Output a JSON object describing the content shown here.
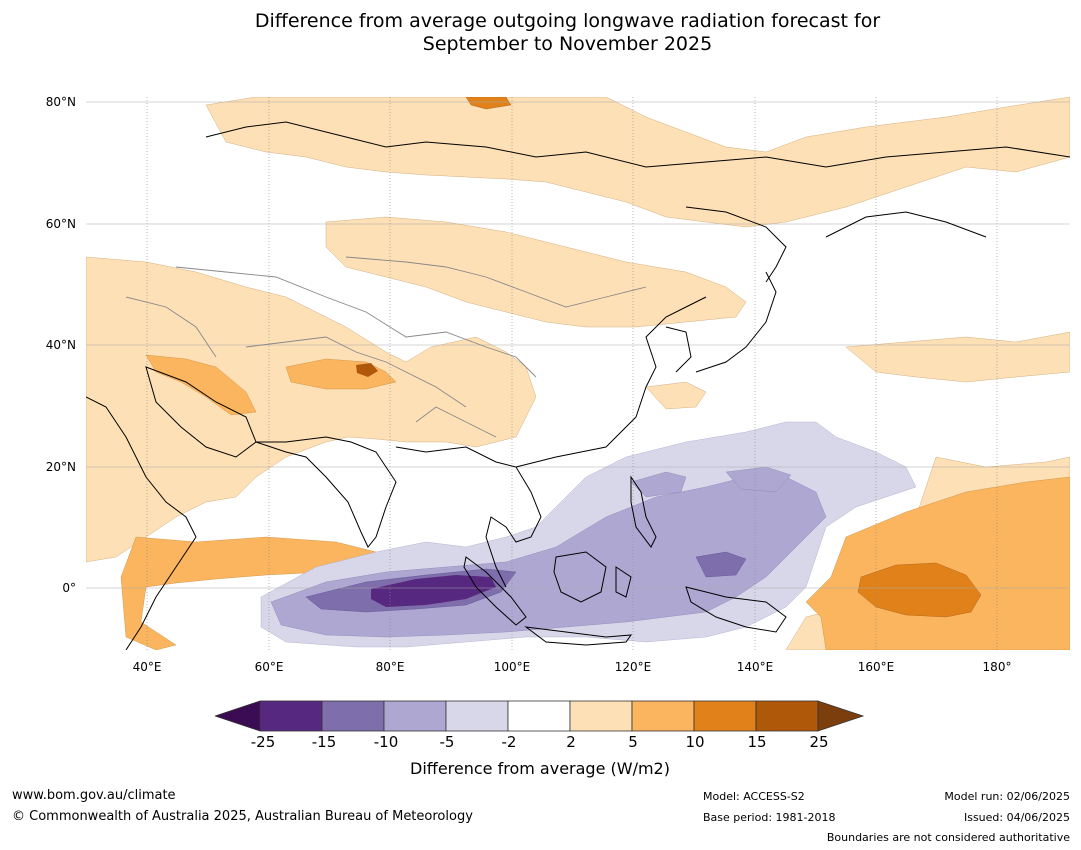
{
  "title_line1": "Difference from average outgoing longwave radiation forecast for",
  "title_line2": "September to November 2025",
  "lat_labels": [
    "80°N",
    "60°N",
    "40°N",
    "20°N",
    "0°"
  ],
  "lon_labels": [
    "40°E",
    "60°E",
    "80°E",
    "100°E",
    "120°E",
    "140°E",
    "160°E",
    "180°"
  ],
  "colorbar": {
    "ticks": [
      "-25",
      "-15",
      "-10",
      "-5",
      "-2",
      "2",
      "5",
      "10",
      "15",
      "25"
    ],
    "colors": [
      "#3b0c54",
      "#57287f",
      "#7e6eab",
      "#aea7d1",
      "#d8d7ea",
      "#ffffff",
      "#fde0b6",
      "#fbb55f",
      "#e08219",
      "#b05809",
      "#7c3e0c"
    ],
    "label": "Difference from average (W/m2)"
  },
  "footer": {
    "url": "www.bom.gov.au/climate",
    "copyright": "© Commonwealth of Australia 2025, Australian Bureau of Meteorology",
    "model": "Model: ACCESS-S2",
    "base_period": "Base period: 1981-2018",
    "model_run": "Model run: 02/06/2025",
    "issued": "Issued: 04/06/2025",
    "disclaimer": "Boundaries are not considered authoritative"
  }
}
